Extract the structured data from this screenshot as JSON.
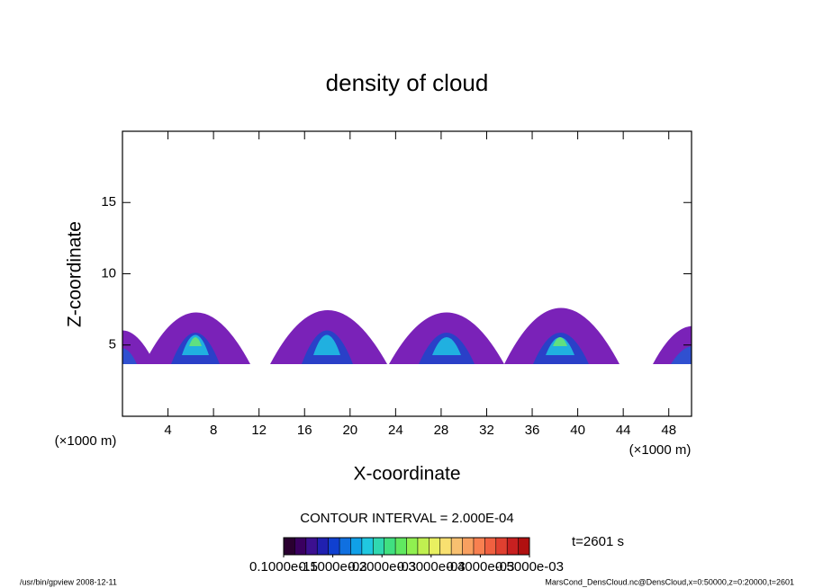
{
  "chart_data": {
    "type": "contour",
    "title": "density of cloud",
    "x_label": "X-coordinate",
    "y_label": "Z-coordinate",
    "x_unit": "(×1000 m)",
    "y_unit": "(×1000 m)",
    "xlim": [
      0,
      50
    ],
    "xticks": [
      4,
      8,
      12,
      16,
      20,
      24,
      28,
      32,
      36,
      40,
      44,
      48
    ],
    "ylim": [
      0,
      20
    ],
    "yticks": [
      5,
      10,
      15
    ],
    "contour_interval": "CONTOUR INTERVAL = 2.000E-04",
    "time_label": "t=2601 s",
    "clim": [
      1e-16,
      0.0005
    ],
    "colorbar_ticks": [
      {
        "value": 1e-16,
        "label": "0.1000e-15"
      },
      {
        "value": 0.0001,
        "label": "0.1000e-03"
      },
      {
        "value": 0.0002,
        "label": "0.2000e-03"
      },
      {
        "value": 0.0003,
        "label": "0.3000e-03"
      },
      {
        "value": 0.0004,
        "label": "0.4000e-03"
      },
      {
        "value": 0.0005,
        "label": "0.5000e-03"
      }
    ],
    "colormap": [
      "#2a0030",
      "#3a0060",
      "#3c1090",
      "#2020b0",
      "#1040d0",
      "#1070e0",
      "#10a0e8",
      "#20c8e0",
      "#30d8b0",
      "#40e080",
      "#60e860",
      "#90f050",
      "#c0f050",
      "#e8f060",
      "#f8e070",
      "#f8c070",
      "#f8a060",
      "#f88050",
      "#f06040",
      "#e04030",
      "#c82020",
      "#b01010"
    ],
    "footer_left": "/usr/bin/gpview  2008-12-11",
    "footer_right": "MarsCond_DensCloud.nc@DensCloud,x=0:50000,z=0:20000,t=2601"
  }
}
